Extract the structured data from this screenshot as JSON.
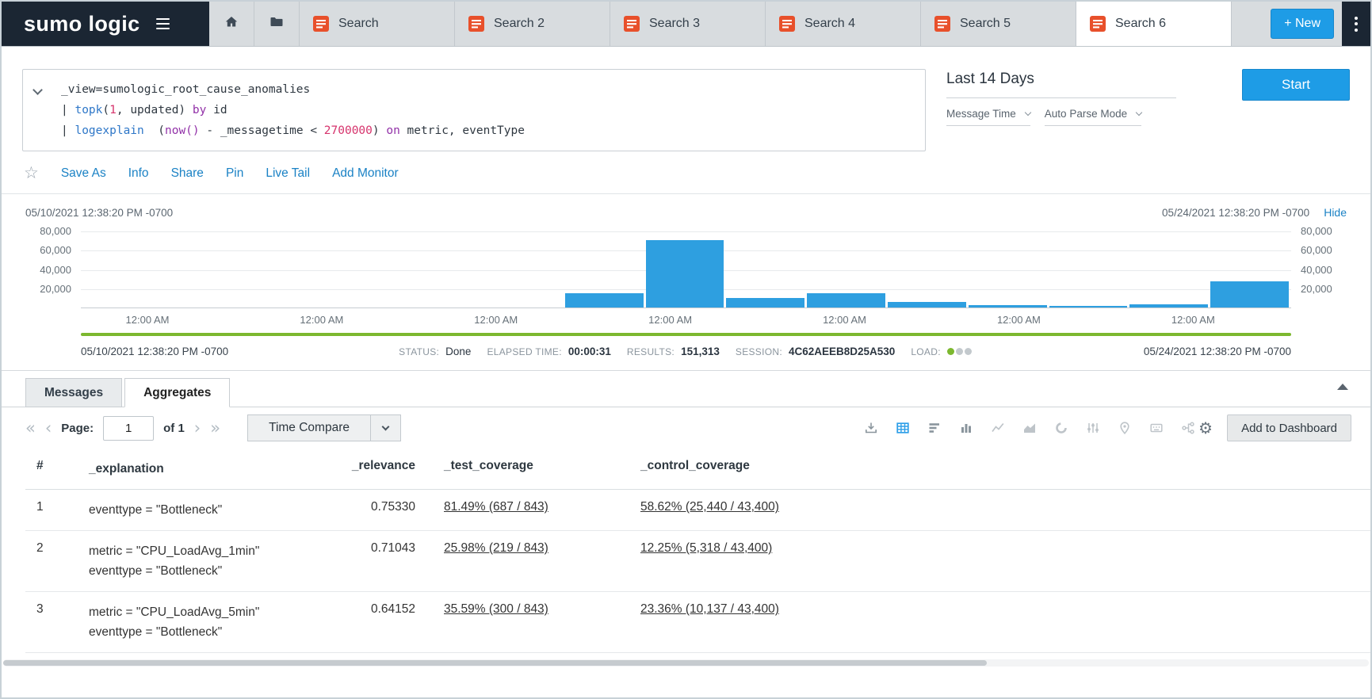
{
  "header": {
    "logo": "sumo logic",
    "search_tabs": [
      {
        "label": "Search",
        "active": false
      },
      {
        "label": "Search 2",
        "active": false
      },
      {
        "label": "Search 3",
        "active": false
      },
      {
        "label": "Search 4",
        "active": false
      },
      {
        "label": "Search 5",
        "active": false
      },
      {
        "label": "Search 6",
        "active": true
      }
    ],
    "new_button": "+ New"
  },
  "query": {
    "lines": [
      [
        {
          "t": "_view=sumologic_root_cause_anomalies",
          "c": "plain"
        }
      ],
      [
        {
          "t": "| ",
          "c": "plain"
        },
        {
          "t": "topk",
          "c": "fn"
        },
        {
          "t": "(",
          "c": "plain"
        },
        {
          "t": "1",
          "c": "num"
        },
        {
          "t": ", updated) ",
          "c": "plain"
        },
        {
          "t": "by",
          "c": "kw"
        },
        {
          "t": " id",
          "c": "plain"
        }
      ],
      [
        {
          "t": "| ",
          "c": "plain"
        },
        {
          "t": "logexplain",
          "c": "fn"
        },
        {
          "t": "  (",
          "c": "plain"
        },
        {
          "t": "now()",
          "c": "kw"
        },
        {
          "t": " - _messagetime < ",
          "c": "plain"
        },
        {
          "t": "2700000",
          "c": "num"
        },
        {
          "t": ") ",
          "c": "plain"
        },
        {
          "t": "on",
          "c": "kw"
        },
        {
          "t": " metric, eventType",
          "c": "plain"
        }
      ]
    ],
    "time_range": "Last 14 Days",
    "message_time": "Message Time",
    "parse_mode": "Auto Parse Mode",
    "start_button": "Start"
  },
  "actions": [
    "Save As",
    "Info",
    "Share",
    "Pin",
    "Live Tail",
    "Add Monitor"
  ],
  "chart": {
    "type": "bar",
    "start_label": "05/10/2021 12:38:20 PM -0700",
    "end_label": "05/24/2021 12:38:20 PM -0700",
    "hide_label": "Hide",
    "y_ticks": [
      "80,000",
      "60,000",
      "40,000",
      "20,000"
    ],
    "x_ticks": [
      "12:00 AM",
      "12:00 AM",
      "12:00 AM",
      "12:00 AM",
      "12:00 AM",
      "12:00 AM",
      "12:00 AM"
    ],
    "y_max": 80000,
    "bars": [
      0,
      0,
      0,
      0,
      0,
      0,
      15000,
      70000,
      10000,
      15000,
      6000,
      2500,
      2000,
      3000,
      27000
    ]
  },
  "status": {
    "start_time": "05/10/2021 12:38:20 PM -0700",
    "status_label": "STATUS:",
    "status_value": "Done",
    "elapsed_label": "ELAPSED TIME:",
    "elapsed_value": "00:00:31",
    "results_label": "RESULTS:",
    "results_value": "151,313",
    "session_label": "SESSION:",
    "session_value": "4C62AEEB8D25A530",
    "load_label": "LOAD:",
    "end_time": "05/24/2021 12:38:20 PM -0700"
  },
  "results": {
    "tabs": [
      {
        "label": "Messages",
        "active": false
      },
      {
        "label": "Aggregates",
        "active": true
      }
    ],
    "pagination": {
      "page_label": "Page:",
      "page_value": "1",
      "of_label": "of 1"
    },
    "time_compare_label": "Time Compare",
    "add_to_dashboard_label": "Add to Dashboard",
    "toolbar_icons": [
      "export-icon",
      "table-view-icon",
      "rows-view-icon",
      "column-chart-icon",
      "line-chart-icon",
      "area-chart-icon",
      "pie-chart-icon",
      "sliders-icon",
      "map-icon",
      "raw-view-icon",
      "flow-icon",
      "gear-icon"
    ],
    "table": {
      "columns": [
        "#",
        "_explanation",
        "_relevance",
        "_test_coverage",
        "_control_coverage"
      ],
      "rows": [
        {
          "num": "1",
          "explanation": [
            "eventtype = \"Bottleneck\""
          ],
          "relevance": "0.75330",
          "test_coverage": "81.49% (687 / 843)",
          "control_coverage": "58.62% (25,440 / 43,400)"
        },
        {
          "num": "2",
          "explanation": [
            "metric = \"CPU_LoadAvg_1min\"",
            "eventtype = \"Bottleneck\""
          ],
          "relevance": "0.71043",
          "test_coverage": "25.98% (219 / 843)",
          "control_coverage": "12.25% (5,318 / 43,400)"
        },
        {
          "num": "3",
          "explanation": [
            "metric = \"CPU_LoadAvg_5min\"",
            "eventtype = \"Bottleneck\""
          ],
          "relevance": "0.64152",
          "test_coverage": "35.59% (300 / 843)",
          "control_coverage": "23.36% (10,137 / 43,400)"
        }
      ]
    }
  },
  "colors": {
    "accent_blue": "#1e9ce6",
    "bar_blue": "#2e9fe0",
    "brand_orange": "#e8502b",
    "progress_green": "#7cb82f",
    "navy": "#1b2633",
    "link_blue": "#1b82c5"
  }
}
